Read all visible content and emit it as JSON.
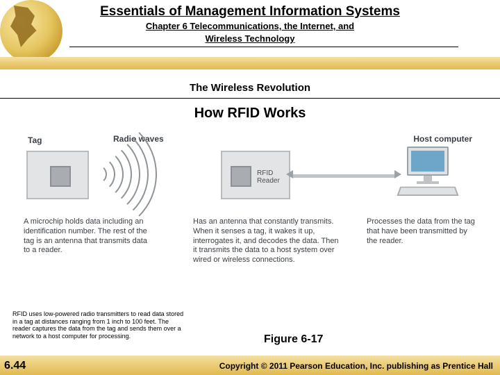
{
  "header": {
    "main_title": "Essentials of Management Information Systems",
    "chapter_line1": "Chapter 6 Telecommunications, the Internet, and",
    "chapter_line2": "Wireless Technology",
    "subheader": "The Wireless Revolution"
  },
  "figure": {
    "title": "How RFID Works",
    "tag_label": "Tag",
    "radio_label": "Radio waves",
    "reader_label1": "RFID",
    "reader_label2": "Reader",
    "host_label": "Host computer",
    "caption_tag": "A microchip holds data including an identification number. The rest of the tag is an antenna that transmits data to a reader.",
    "caption_reader": "Has an antenna that constantly transmits. When it senses a tag, it wakes it up, interrogates it, and decodes the data. Then it transmits the data to a host system over wired or wireless connections.",
    "caption_host": "Processes the data from the tag that have been transmitted by the reader.",
    "label": "Figure 6-17",
    "waves": {
      "count": 7,
      "stroke_color": "#8f9498",
      "stroke_width": 2
    },
    "colors": {
      "box_fill": "#e2e4e6",
      "box_border": "#b7bcc0",
      "chip_fill": "#a9adb1",
      "chip_border": "#8c9094",
      "screen": "#6ea6c9",
      "connector": "#bfc3c6",
      "text": "#3a3f44"
    }
  },
  "footnote": "RFID uses low-powered radio transmitters to read data stored in a tag at distances ranging from 1 inch to 100 feet. The reader captures the data from the tag and sends them over a network to a host computer for processing.",
  "footer": {
    "slide_number": "6.44",
    "copyright": "Copyright © 2011 Pearson Education, Inc. publishing as Prentice Hall"
  },
  "theme": {
    "gradient_light": "#f3dfa0",
    "gradient_dark": "#e2b94f",
    "background": "#ffffff"
  }
}
